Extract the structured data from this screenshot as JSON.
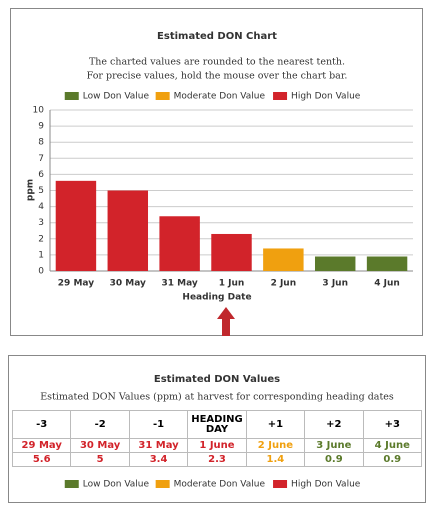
{
  "chart_data": {
    "type": "bar",
    "title": "Estimated DON Chart",
    "subtitle": [
      "The charted values are rounded to the nearest tenth.",
      "For precise values, hold the mouse over the chart bar."
    ],
    "x_label": "Heading Date",
    "y_label": "ppm",
    "categories": [
      "29 May",
      "30 May",
      "31 May",
      "1 Jun",
      "2 Jun",
      "3 Jun",
      "4 Jun"
    ],
    "series": [
      {
        "name": "Low Don Value",
        "color": "#5b7a2b",
        "values": [
          null,
          null,
          null,
          null,
          null,
          0.9,
          0.9
        ]
      },
      {
        "name": "Moderate Don Value",
        "color": "#f0a00f",
        "values": [
          null,
          null,
          null,
          null,
          1.4,
          null,
          null
        ]
      },
      {
        "name": "High Don Value",
        "color": "#d2232a",
        "values": [
          5.6,
          5,
          3.4,
          2.3,
          null,
          null,
          null
        ]
      }
    ],
    "ylim": [
      0,
      10
    ],
    "yticks": [
      0,
      1,
      2,
      3,
      4,
      5,
      6,
      7,
      8,
      9,
      10
    ],
    "grid": true
  },
  "table": {
    "title": "Estimated DON Values",
    "subtitle": "Estimated DON Values (ppm) at harvest for corresponding heading dates",
    "rows": [
      [
        "-3",
        "-2",
        "-1",
        "HEADING DAY",
        "+1",
        "+2",
        "+3"
      ],
      [
        "29 May",
        "30 May",
        "31 May",
        "1 June",
        "2 June",
        "3 June",
        "4 June"
      ],
      [
        "5.6",
        "5",
        "3.4",
        "2.3",
        "1.4",
        "0.9",
        "0.9"
      ]
    ]
  }
}
